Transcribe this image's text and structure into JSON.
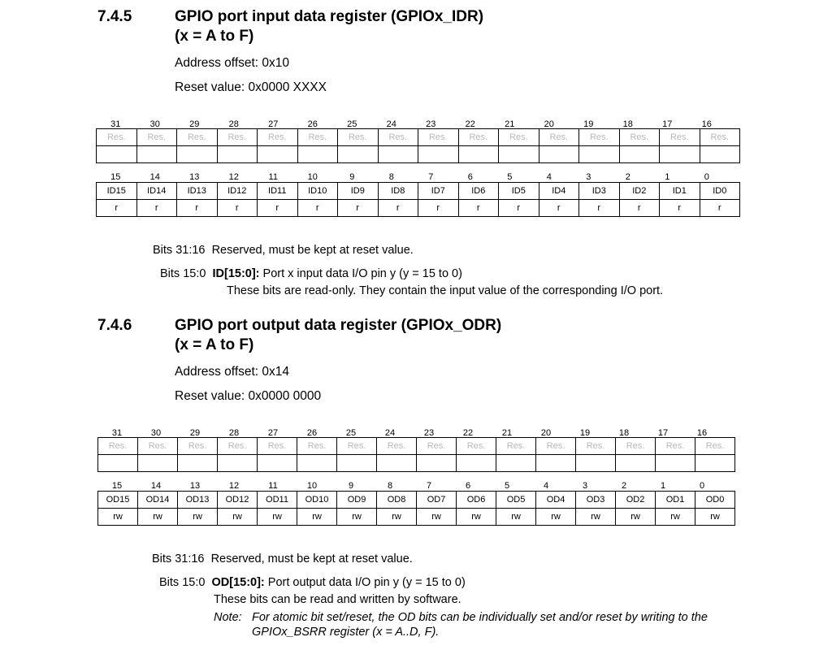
{
  "sections": [
    {
      "number": "7.4.5",
      "title_line1": "GPIO port input data register (GPIOx_IDR)",
      "title_line2": "(x = A to F)",
      "address_offset": "Address offset: 0x10",
      "reset_value": "Reset value: 0x0000 XXXX",
      "upper_bits": [
        "31",
        "30",
        "29",
        "28",
        "27",
        "26",
        "25",
        "24",
        "23",
        "22",
        "21",
        "20",
        "19",
        "18",
        "17",
        "16"
      ],
      "upper_fields": [
        "Res.",
        "Res.",
        "Res.",
        "Res.",
        "Res.",
        "Res.",
        "Res.",
        "Res.",
        "Res.",
        "Res.",
        "Res.",
        "Res.",
        "Res.",
        "Res.",
        "Res.",
        "Res."
      ],
      "lower_bits": [
        "15",
        "14",
        "13",
        "12",
        "11",
        "10",
        "9",
        "8",
        "7",
        "6",
        "5",
        "4",
        "3",
        "2",
        "1",
        "0"
      ],
      "lower_fields": [
        "ID15",
        "ID14",
        "ID13",
        "ID12",
        "ID11",
        "ID10",
        "ID9",
        "ID8",
        "ID7",
        "ID6",
        "ID5",
        "ID4",
        "ID3",
        "ID2",
        "ID1",
        "ID0"
      ],
      "lower_access": [
        "r",
        "r",
        "r",
        "r",
        "r",
        "r",
        "r",
        "r",
        "r",
        "r",
        "r",
        "r",
        "r",
        "r",
        "r",
        "r"
      ],
      "desc_reserved_bits": "Bits 31:16",
      "desc_reserved_text": "Reserved, must be kept at reset value.",
      "desc_data_bits": "Bits 15:0",
      "desc_data_field": "ID[15:0]:",
      "desc_data_text": " Port x input data I/O pin y (y = 15 to 0)",
      "desc_data_detail": "These bits are read-only. They contain the input value of the corresponding I/O port."
    },
    {
      "number": "7.4.6",
      "title_line1": "GPIO port output data register (GPIOx_ODR)",
      "title_line2": "(x = A to F)",
      "address_offset": "Address offset: 0x14",
      "reset_value": "Reset value: 0x0000 0000",
      "upper_bits": [
        "31",
        "30",
        "29",
        "28",
        "27",
        "26",
        "25",
        "24",
        "23",
        "22",
        "21",
        "20",
        "19",
        "18",
        "17",
        "16"
      ],
      "upper_fields": [
        "Res.",
        "Res.",
        "Res.",
        "Res.",
        "Res.",
        "Res.",
        "Res.",
        "Res.",
        "Res.",
        "Res.",
        "Res.",
        "Res.",
        "Res.",
        "Res.",
        "Res.",
        "Res."
      ],
      "lower_bits": [
        "15",
        "14",
        "13",
        "12",
        "11",
        "10",
        "9",
        "8",
        "7",
        "6",
        "5",
        "4",
        "3",
        "2",
        "1",
        "0"
      ],
      "lower_fields": [
        "OD15",
        "OD14",
        "OD13",
        "OD12",
        "OD11",
        "OD10",
        "OD9",
        "OD8",
        "OD7",
        "OD6",
        "OD5",
        "OD4",
        "OD3",
        "OD2",
        "OD1",
        "OD0"
      ],
      "lower_access": [
        "rw",
        "rw",
        "rw",
        "rw",
        "rw",
        "rw",
        "rw",
        "rw",
        "rw",
        "rw",
        "rw",
        "rw",
        "rw",
        "rw",
        "rw",
        "rw"
      ],
      "desc_reserved_bits": "Bits 31:16",
      "desc_reserved_text": "Reserved, must be kept at reset value.",
      "desc_data_bits": "Bits 15:0",
      "desc_data_field": "OD[15:0]:",
      "desc_data_text": " Port output data I/O pin y (y = 15 to 0)",
      "desc_data_detail": "These bits can be read and written by software.",
      "note_label": "Note:",
      "note_line1": "For atomic bit set/reset, the OD bits can be individually set and/or reset by writing to the",
      "note_line2": "GPIOx_BSRR register (x = A..D, F)."
    }
  ]
}
